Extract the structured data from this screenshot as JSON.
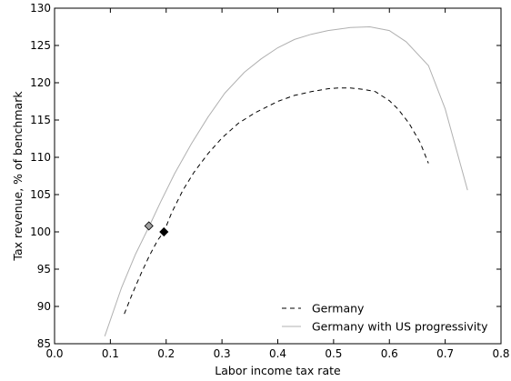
{
  "chart_data": {
    "type": "line",
    "xlabel": "Labor income tax rate",
    "ylabel": "Tax revenue, % of benchmark",
    "xlim": [
      0.0,
      0.8
    ],
    "ylim": [
      85,
      130
    ],
    "xticks": [
      0.0,
      0.1,
      0.2,
      0.3,
      0.4,
      0.5,
      0.6,
      0.7,
      0.8
    ],
    "xtick_labels": [
      "0.0",
      "0.1",
      "0.2",
      "0.3",
      "0.4",
      "0.5",
      "0.6",
      "0.7",
      "0.8"
    ],
    "yticks": [
      85,
      90,
      95,
      100,
      105,
      110,
      115,
      120,
      125,
      130
    ],
    "ytick_labels": [
      "85",
      "90",
      "95",
      "100",
      "105",
      "110",
      "115",
      "120",
      "125",
      "130"
    ],
    "grid": false,
    "legend_position": "lower-right",
    "series": [
      {
        "name": "Germany",
        "style": "dashed",
        "color": "#000000",
        "x": [
          0.125,
          0.14,
          0.155,
          0.17,
          0.185,
          0.196,
          0.21,
          0.23,
          0.25,
          0.275,
          0.3,
          0.33,
          0.36,
          0.4,
          0.43,
          0.46,
          0.49,
          0.51,
          0.53,
          0.555,
          0.575,
          0.6,
          0.615,
          0.635,
          0.655,
          0.67
        ],
        "y": [
          89.0,
          91.8,
          94.4,
          96.8,
          98.9,
          100.0,
          102.6,
          105.6,
          108.0,
          110.5,
          112.6,
          114.6,
          116.0,
          117.5,
          118.3,
          118.8,
          119.2,
          119.3,
          119.3,
          119.1,
          118.8,
          117.6,
          116.5,
          114.6,
          112.0,
          109.2
        ],
        "marker": {
          "x": 0.196,
          "y": 100.0,
          "shape": "diamond",
          "color": "#000000"
        }
      },
      {
        "name": "Germany with US progressivity",
        "style": "solid",
        "color": "#b0b0b0",
        "x": [
          0.09,
          0.12,
          0.145,
          0.17,
          0.19,
          0.215,
          0.245,
          0.275,
          0.305,
          0.34,
          0.37,
          0.4,
          0.43,
          0.46,
          0.49,
          0.53,
          0.565,
          0.6,
          0.63,
          0.67,
          0.7,
          0.74
        ],
        "y": [
          86.0,
          92.5,
          97.0,
          100.8,
          104.0,
          107.8,
          111.8,
          115.4,
          118.6,
          121.4,
          123.2,
          124.7,
          125.8,
          126.5,
          127.0,
          127.4,
          127.5,
          127.0,
          125.5,
          122.3,
          116.5,
          105.6
        ],
        "marker": {
          "x": 0.169,
          "y": 100.8,
          "shape": "diamond",
          "color": "#a0a0a0"
        }
      }
    ],
    "legend": [
      {
        "label": "Germany",
        "style": "dashed",
        "color": "#000000"
      },
      {
        "label": "Germany with US progressivity",
        "style": "solid",
        "color": "#b0b0b0"
      }
    ]
  }
}
